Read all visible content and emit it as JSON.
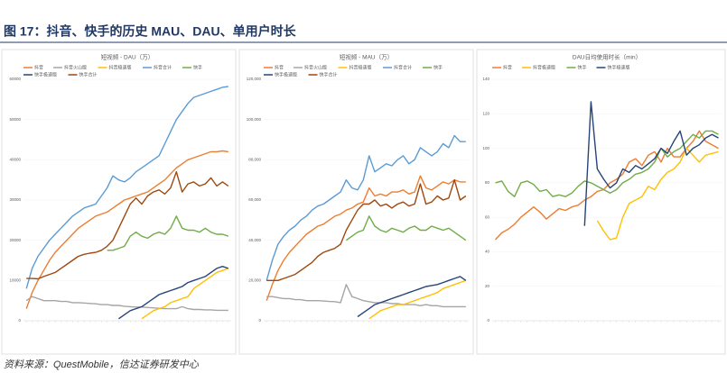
{
  "title": "图 17：抖音、快手的历史 MAU、DAU、单用户时长",
  "source": "资料来源：QuestMobile，信达证券研发中心",
  "chart_data": [
    {
      "type": "line",
      "title": "短视频 - DAU（万）",
      "categories": [
        null,
        null,
        null,
        null,
        null,
        null,
        null,
        null,
        null,
        null,
        null,
        null,
        null,
        null,
        null,
        null,
        null,
        null,
        null,
        null,
        null,
        null,
        null,
        null,
        null,
        null,
        null,
        null,
        null,
        null,
        null,
        null,
        null,
        null,
        null,
        null
      ],
      "ylim": [
        0,
        60000
      ],
      "yticks": [
        0,
        10000,
        20000,
        30000,
        40000,
        50000,
        60000
      ],
      "series": [
        {
          "name": "抖音",
          "color": "#ed7d31",
          "values": [
            3000,
            7000,
            10000,
            12500,
            15000,
            17000,
            18500,
            20000,
            21500,
            23000,
            24000,
            25000,
            26000,
            26500,
            27000,
            28000,
            29000,
            30000,
            30500,
            31000,
            31500,
            32000,
            33000,
            34000,
            35000,
            36500,
            38000,
            39000,
            40000,
            40500,
            41000,
            41500,
            42000,
            42000,
            42200,
            42000
          ]
        },
        {
          "name": "抖音火山版",
          "color": "#a5a5a5",
          "values": [
            5000,
            6000,
            5500,
            5000,
            5000,
            5000,
            4800,
            4800,
            4500,
            4500,
            4400,
            4300,
            4200,
            4000,
            4000,
            3800,
            3800,
            3600,
            3500,
            3400,
            3400,
            3300,
            3200,
            3100,
            3000,
            3000,
            3000,
            3500,
            3000,
            2800,
            2800,
            2700,
            2700,
            2600,
            2600,
            2600
          ]
        },
        {
          "name": "抖音极速版",
          "color": "#ffc000",
          "values": [
            null,
            null,
            null,
            null,
            null,
            null,
            null,
            null,
            null,
            null,
            null,
            null,
            null,
            null,
            null,
            null,
            null,
            null,
            null,
            null,
            500,
            1500,
            2500,
            3000,
            3500,
            4500,
            5000,
            5500,
            6000,
            8000,
            9000,
            10000,
            11000,
            12000,
            12500,
            13000
          ]
        },
        {
          "name": "抖音合计",
          "color": "#5b9bd5",
          "values": [
            8000,
            13000,
            16000,
            18000,
            20000,
            21500,
            23000,
            24500,
            26000,
            27000,
            28000,
            28500,
            29000,
            31000,
            33000,
            36000,
            35000,
            34500,
            35500,
            37000,
            38000,
            39000,
            40000,
            41000,
            44000,
            47000,
            50000,
            52000,
            54000,
            55500,
            56000,
            56500,
            57000,
            57500,
            58000,
            58200
          ]
        },
        {
          "name": "快手",
          "color": "#70ad47",
          "values": [
            null,
            null,
            null,
            null,
            null,
            null,
            null,
            null,
            null,
            null,
            null,
            null,
            null,
            null,
            17500,
            17500,
            18000,
            18500,
            21000,
            22000,
            21000,
            20500,
            21500,
            22000,
            21500,
            23000,
            26000,
            23000,
            22500,
            22500,
            22000,
            23000,
            22000,
            21500,
            21500,
            21000
          ]
        },
        {
          "name": "快手极速版",
          "color": "#264478",
          "values": [
            null,
            null,
            null,
            null,
            null,
            null,
            null,
            null,
            null,
            null,
            null,
            null,
            null,
            null,
            null,
            null,
            500,
            1500,
            2500,
            3000,
            3500,
            4500,
            5500,
            6500,
            7000,
            7500,
            8000,
            8500,
            9500,
            10000,
            10500,
            11000,
            12000,
            13000,
            13500,
            13000
          ]
        },
        {
          "name": "快手合计",
          "color": "#9e480e",
          "values": [
            10500,
            10500,
            10400,
            11000,
            11500,
            12000,
            13000,
            14000,
            15000,
            16000,
            16500,
            16800,
            17000,
            17500,
            18500,
            20000,
            23000,
            26000,
            29000,
            30500,
            29000,
            31000,
            32000,
            32500,
            31500,
            33000,
            37000,
            32000,
            34000,
            34500,
            33500,
            34000,
            35500,
            33500,
            34500,
            33500
          ]
        }
      ]
    },
    {
      "type": "line",
      "title": "短视频 - MAU（万）",
      "categories": [
        null,
        null,
        null,
        null,
        null,
        null,
        null,
        null,
        null,
        null,
        null,
        null,
        null,
        null,
        null,
        null,
        null,
        null,
        null,
        null,
        null,
        null,
        null,
        null,
        null,
        null,
        null,
        null,
        null,
        null,
        null,
        null,
        null,
        null,
        null,
        null
      ],
      "ylim": [
        0,
        120000
      ],
      "yticks": [
        0,
        {
          "value": 20000,
          "label": "20,000"
        },
        {
          "value": 40000,
          "label": "40,000"
        },
        {
          "value": 60000,
          "label": "60,000"
        },
        {
          "value": 80000,
          "label": "80,000"
        },
        {
          "value": 100000,
          "label": "100,000"
        },
        {
          "value": 120000,
          "label": "120,000"
        }
      ],
      "series": [
        {
          "name": "抖音",
          "color": "#ed7d31",
          "values": [
            10000,
            18000,
            25000,
            30000,
            34000,
            37000,
            40000,
            43000,
            45000,
            47000,
            48000,
            50000,
            52000,
            53000,
            55000,
            56000,
            58000,
            59000,
            66000,
            62000,
            63000,
            62000,
            64000,
            64000,
            65000,
            63000,
            64000,
            72000,
            66000,
            65000,
            67000,
            69000,
            68000,
            70000,
            69000,
            69000
          ]
        },
        {
          "name": "抖音火山版",
          "color": "#a5a5a5",
          "values": [
            12000,
            12000,
            11500,
            11000,
            11000,
            10500,
            10500,
            10000,
            10000,
            10000,
            9800,
            9600,
            9500,
            9000,
            18000,
            12000,
            11000,
            10000,
            9500,
            9000,
            9000,
            9000,
            8500,
            8500,
            8000,
            8000,
            8000,
            7500,
            8000,
            7500,
            7500,
            7000,
            7000,
            7000,
            7000,
            7000
          ]
        },
        {
          "name": "抖音极速版",
          "color": "#ffc000",
          "values": [
            null,
            null,
            null,
            null,
            null,
            null,
            null,
            null,
            null,
            null,
            null,
            null,
            null,
            null,
            null,
            null,
            null,
            null,
            1000,
            3000,
            5000,
            6000,
            7000,
            8000,
            8000,
            9000,
            10000,
            11000,
            12000,
            13000,
            14000,
            16000,
            17000,
            18000,
            19000,
            20000
          ]
        },
        {
          "name": "抖音合计",
          "color": "#5b9bd5",
          "values": [
            20000,
            30000,
            38000,
            42000,
            45000,
            47000,
            50000,
            52000,
            55000,
            57000,
            58000,
            60000,
            62000,
            64000,
            70000,
            66000,
            65000,
            70000,
            82000,
            74000,
            76000,
            78000,
            77000,
            80000,
            82000,
            78000,
            80000,
            86000,
            84000,
            82000,
            84000,
            88000,
            86000,
            92000,
            89000,
            89000
          ]
        },
        {
          "name": "快手",
          "color": "#70ad47",
          "values": [
            null,
            null,
            null,
            null,
            null,
            null,
            null,
            null,
            null,
            null,
            null,
            null,
            null,
            null,
            40000,
            42000,
            44000,
            45000,
            52000,
            47000,
            45000,
            44000,
            46000,
            45000,
            44000,
            46000,
            47000,
            45000,
            45000,
            47000,
            46000,
            45000,
            46000,
            44000,
            42000,
            40000
          ]
        },
        {
          "name": "快手极速版",
          "color": "#264478",
          "values": [
            null,
            null,
            null,
            null,
            null,
            null,
            null,
            null,
            null,
            null,
            null,
            null,
            null,
            null,
            null,
            null,
            2000,
            4000,
            6000,
            8000,
            9000,
            10000,
            11000,
            12000,
            13000,
            14000,
            15000,
            16000,
            17000,
            17500,
            18000,
            19000,
            20000,
            21000,
            22000,
            20000
          ]
        },
        {
          "name": "快手合计",
          "color": "#9e480e",
          "values": [
            20000,
            20000,
            20000,
            21000,
            22000,
            23000,
            25000,
            27000,
            29000,
            32000,
            34000,
            35000,
            36000,
            38000,
            45000,
            50000,
            55000,
            58000,
            58000,
            60000,
            57000,
            58000,
            56000,
            58000,
            59000,
            57000,
            58000,
            68000,
            58000,
            59000,
            62000,
            60000,
            61000,
            70000,
            60000,
            62000
          ]
        }
      ]
    },
    {
      "type": "line",
      "title": "DAU日均使用时长（min）",
      "categories": [
        null,
        null,
        null,
        null,
        null,
        null,
        null,
        null,
        null,
        null,
        null,
        null,
        null,
        null,
        null,
        null,
        null,
        null,
        null,
        null,
        null,
        null,
        null,
        null,
        null,
        null,
        null,
        null,
        null,
        null,
        null,
        null,
        null,
        null,
        null,
        null
      ],
      "ylim": [
        0,
        140
      ],
      "yticks": [
        0,
        20,
        40,
        60,
        80,
        100,
        120,
        140
      ],
      "series": [
        {
          "name": "抖音",
          "color": "#ed7d31",
          "values": [
            47,
            51,
            53,
            56,
            60,
            63,
            66,
            63,
            59,
            62,
            65,
            64,
            66,
            67,
            70,
            72,
            75,
            76,
            80,
            82,
            85,
            92,
            94,
            90,
            96,
            98,
            92,
            100,
            95,
            95,
            100,
            104,
            110,
            104,
            102,
            100
          ]
        },
        {
          "name": "抖音极速版",
          "color": "#ffc000",
          "values": [
            null,
            null,
            null,
            null,
            null,
            null,
            null,
            null,
            null,
            null,
            null,
            null,
            null,
            null,
            null,
            null,
            58,
            52,
            47,
            48,
            60,
            68,
            70,
            72,
            78,
            76,
            82,
            86,
            88,
            92,
            100,
            96,
            92,
            96,
            97,
            98
          ]
        },
        {
          "name": "快手",
          "color": "#70ad47",
          "values": [
            80,
            81,
            75,
            72,
            80,
            81,
            79,
            75,
            76,
            72,
            73,
            72,
            74,
            78,
            81,
            80,
            78,
            76,
            74,
            76,
            80,
            82,
            85,
            86,
            88,
            92,
            100,
            95,
            98,
            100,
            104,
            108,
            106,
            110,
            110,
            108
          ]
        },
        {
          "name": "快手极速版",
          "color": "#264478",
          "values": [
            null,
            null,
            null,
            null,
            null,
            null,
            null,
            null,
            null,
            null,
            null,
            null,
            null,
            null,
            55,
            127,
            88,
            82,
            77,
            80,
            88,
            86,
            90,
            88,
            91,
            94,
            100,
            97,
            104,
            110,
            96,
            100,
            102,
            106,
            108,
            106
          ]
        }
      ]
    }
  ]
}
